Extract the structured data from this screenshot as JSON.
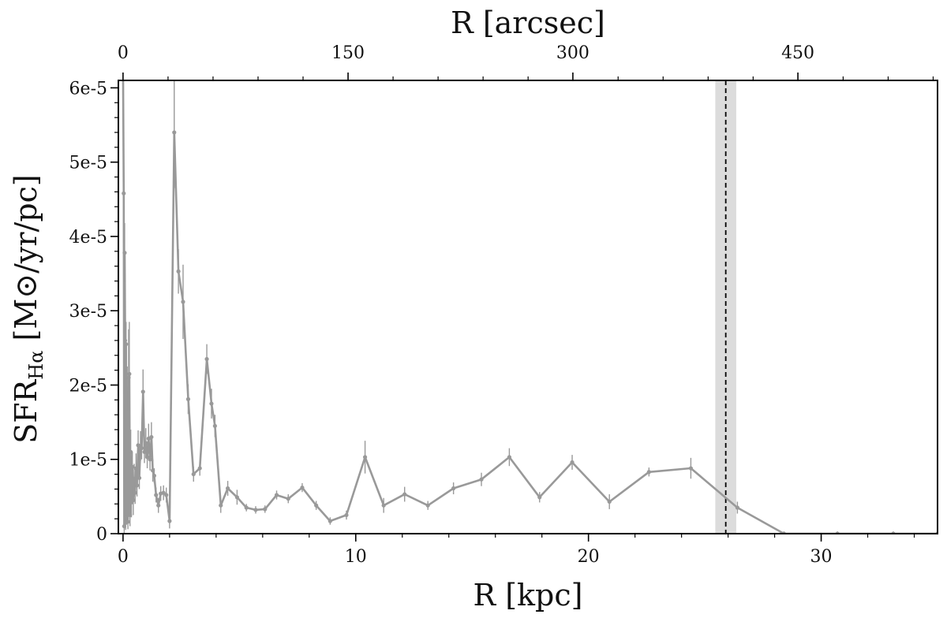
{
  "chart_data": {
    "type": "line",
    "xlabel": "R [kpc]",
    "ylabel_main": "SFR",
    "ylabel_sub": "Hα",
    "ylabel_units": " [M⊙/yr/pc]",
    "top_xlabel": "R [arcsec]",
    "xlim": [
      -0.2,
      35
    ],
    "ylim": [
      0,
      6.1e-05
    ],
    "xticks": [
      0,
      10,
      20,
      30
    ],
    "xtick_labels": [
      "0",
      "10",
      "20",
      "30"
    ],
    "yticks": [
      0,
      1e-05,
      2e-05,
      3e-05,
      4e-05,
      5e-05,
      6e-05
    ],
    "ytick_labels": [
      "0",
      "1e-5",
      "2e-5",
      "3e-5",
      "4e-5",
      "5e-5",
      "6e-5"
    ],
    "top_ticks_kpc": [
      0,
      9.67,
      19.33,
      29.0
    ],
    "top_tick_labels": [
      "0",
      "150",
      "300",
      "450"
    ],
    "line_color": "#999999",
    "band_color": "#dcdcdc",
    "vline_x": 25.9,
    "band_range": [
      25.45,
      26.35
    ],
    "series": [
      {
        "x": [
          0.0,
          0.03,
          0.05,
          0.07,
          0.09,
          0.11,
          0.13,
          0.15,
          0.18,
          0.21,
          0.24,
          0.27,
          0.3,
          0.33,
          0.36,
          0.4,
          0.44,
          0.48,
          0.52,
          0.56,
          0.6,
          0.65,
          0.7,
          0.75,
          0.8,
          0.86,
          0.92,
          0.98,
          1.04,
          1.1,
          1.16,
          1.22,
          1.28,
          1.34,
          1.42,
          1.52,
          1.62,
          1.74,
          1.86,
          2.0,
          2.2,
          2.38,
          2.58,
          2.8,
          3.03,
          3.3,
          3.6,
          3.8,
          3.95,
          4.2,
          4.5,
          4.9,
          5.3,
          5.7,
          6.1,
          6.6,
          7.1,
          7.7,
          8.3,
          8.9,
          9.6,
          10.4,
          11.2,
          12.1,
          13.1,
          14.2,
          15.4,
          16.6,
          17.9,
          19.3,
          20.9,
          22.6,
          24.4,
          26.4,
          28.4,
          30.7,
          33.1,
          35.0
        ],
        "y": [
          6.3e-05,
          4.58e-05,
          1e-06,
          3.78e-05,
          2.6e-05,
          1.5e-06,
          2.55e-05,
          2.2e-06,
          1.95e-05,
          1.6e-06,
          2.1e-05,
          2.15e-05,
          2.5e-06,
          1.1e-05,
          4.2e-06,
          9e-06,
          4.5e-06,
          7.4e-06,
          5.5e-06,
          8.8e-06,
          6.5e-06,
          1.19e-05,
          7.5e-06,
          1.18e-05,
          1.15e-05,
          1.91e-05,
          1.1e-05,
          1.22e-05,
          1.03e-05,
          1.28e-05,
          1e-05,
          1.3e-05,
          8.5e-06,
          7.8e-06,
          5.2e-06,
          3.8e-06,
          5.4e-06,
          5.5e-06,
          5.2e-06,
          1.7e-06,
          5.4e-05,
          3.53e-05,
          3.12e-05,
          1.81e-05,
          8e-06,
          8.8e-06,
          2.35e-05,
          1.75e-05,
          1.45e-05,
          3.8e-06,
          6.1e-06,
          4.9e-06,
          3.5e-06,
          3.2e-06,
          3.3e-06,
          5.2e-06,
          4.7e-06,
          6.2e-06,
          3.8e-06,
          1.7e-06,
          2.5e-06,
          1.03e-05,
          3.8e-06,
          5.3e-06,
          3.8e-06,
          6.1e-06,
          7.3e-06,
          1.03e-05,
          4.9e-06,
          9.6e-06,
          4.3e-06,
          8.3e-06,
          8.8e-06,
          3.5e-06,
          0.0,
          0.0,
          0.0,
          0.0
        ],
        "err": [
          4e-06,
          4e-06,
          1e-06,
          4e-06,
          3.5e-06,
          1e-06,
          3e-06,
          1e-06,
          3e-06,
          1e-06,
          6.5e-06,
          7e-06,
          1.5e-06,
          3e-06,
          2e-06,
          2e-06,
          2e-06,
          2e-06,
          1.5e-06,
          2e-06,
          1.5e-06,
          2e-06,
          1.5e-06,
          2e-06,
          1.5e-06,
          3e-06,
          1.5e-06,
          2e-06,
          1.5e-06,
          2e-06,
          1.5e-06,
          2e-06,
          1.5e-06,
          1e-06,
          1e-06,
          1e-06,
          1e-06,
          1e-06,
          1e-06,
          1e-06,
          7.5e-06,
          3e-06,
          5e-06,
          2e-06,
          1e-06,
          1e-06,
          2e-06,
          2e-06,
          1.5e-06,
          1e-06,
          1e-06,
          1e-06,
          5e-07,
          5e-07,
          5e-07,
          6e-07,
          6e-07,
          6e-07,
          6e-07,
          5e-07,
          6e-07,
          2.2e-06,
          1e-06,
          1e-06,
          6e-07,
          8e-07,
          9e-07,
          1.2e-06,
          7e-07,
          1e-06,
          1e-06,
          6e-07,
          1.4e-06,
          8e-07,
          3e-07,
          3e-07,
          3e-07,
          2e-07
        ]
      }
    ]
  }
}
